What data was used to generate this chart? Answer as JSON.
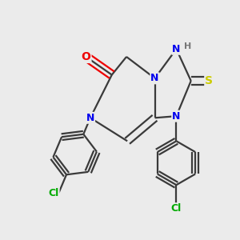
{
  "background_color": "#ebebeb",
  "bond_color": "#3a3a3a",
  "bond_width": 1.6,
  "atom_colors": {
    "N": "#0000ee",
    "O": "#ee0000",
    "S": "#cccc00",
    "Cl": "#00aa00",
    "C": "#3a3a3a",
    "H": "#777777"
  },
  "figsize": [
    3.0,
    3.0
  ],
  "dpi": 100
}
